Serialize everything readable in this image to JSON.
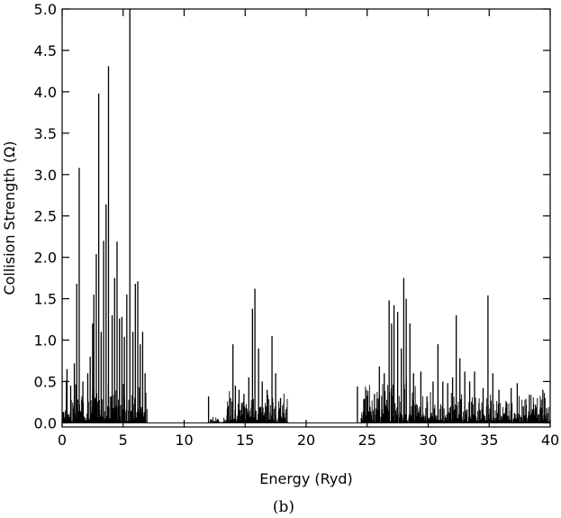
{
  "chart_data": {
    "type": "line",
    "panel_label": "(b)",
    "xlabel": "Energy (Ryd)",
    "ylabel": "Collision Strength (Ω)",
    "xlim": [
      0,
      40
    ],
    "ylim": [
      -0.05,
      5.0
    ],
    "x_ticks": [
      "0",
      "5",
      "10",
      "15",
      "20",
      "25",
      "30",
      "35",
      "40"
    ],
    "y_ticks": [
      "0.0",
      "0.5",
      "1.0",
      "1.5",
      "2.0",
      "2.5",
      "3.0",
      "3.5",
      "4.0",
      "4.5",
      "5.0"
    ],
    "grid": false,
    "line_color": "#000000",
    "baseline": 0.0,
    "peaks": [
      {
        "x": 0.4,
        "y": 0.65
      },
      {
        "x": 0.7,
        "y": 0.45
      },
      {
        "x": 1.0,
        "y": 0.72
      },
      {
        "x": 1.2,
        "y": 1.68
      },
      {
        "x": 1.4,
        "y": 3.08
      },
      {
        "x": 1.7,
        "y": 0.5
      },
      {
        "x": 2.1,
        "y": 0.6
      },
      {
        "x": 2.3,
        "y": 0.8
      },
      {
        "x": 2.5,
        "y": 1.2
      },
      {
        "x": 2.6,
        "y": 1.55
      },
      {
        "x": 2.8,
        "y": 2.04
      },
      {
        "x": 3.0,
        "y": 3.98
      },
      {
        "x": 3.2,
        "y": 1.1
      },
      {
        "x": 3.4,
        "y": 2.2
      },
      {
        "x": 3.6,
        "y": 2.64
      },
      {
        "x": 3.8,
        "y": 4.31
      },
      {
        "x": 4.1,
        "y": 1.3
      },
      {
        "x": 4.3,
        "y": 1.75
      },
      {
        "x": 4.5,
        "y": 2.19
      },
      {
        "x": 4.7,
        "y": 1.26
      },
      {
        "x": 4.9,
        "y": 1.28
      },
      {
        "x": 5.1,
        "y": 1.04
      },
      {
        "x": 5.3,
        "y": 1.55
      },
      {
        "x": 5.55,
        "y": 5.0
      },
      {
        "x": 5.8,
        "y": 1.1
      },
      {
        "x": 6.0,
        "y": 1.68
      },
      {
        "x": 6.2,
        "y": 1.71
      },
      {
        "x": 6.4,
        "y": 0.95
      },
      {
        "x": 6.6,
        "y": 1.1
      },
      {
        "x": 6.8,
        "y": 0.6
      },
      {
        "x": 12.0,
        "y": 0.32
      },
      {
        "x": 13.8,
        "y": 0.3
      },
      {
        "x": 14.0,
        "y": 0.95
      },
      {
        "x": 14.2,
        "y": 0.45
      },
      {
        "x": 14.5,
        "y": 0.4
      },
      {
        "x": 14.9,
        "y": 0.35
      },
      {
        "x": 15.3,
        "y": 0.55
      },
      {
        "x": 15.6,
        "y": 1.38
      },
      {
        "x": 15.8,
        "y": 1.62
      },
      {
        "x": 16.1,
        "y": 0.9
      },
      {
        "x": 16.4,
        "y": 0.5
      },
      {
        "x": 16.8,
        "y": 0.4
      },
      {
        "x": 17.2,
        "y": 1.05
      },
      {
        "x": 17.5,
        "y": 0.6
      },
      {
        "x": 17.9,
        "y": 0.3
      },
      {
        "x": 24.2,
        "y": 0.44
      },
      {
        "x": 25.0,
        "y": 0.15
      },
      {
        "x": 25.6,
        "y": 0.35
      },
      {
        "x": 26.0,
        "y": 0.68
      },
      {
        "x": 26.4,
        "y": 0.6
      },
      {
        "x": 26.8,
        "y": 1.48
      },
      {
        "x": 27.0,
        "y": 1.2
      },
      {
        "x": 27.2,
        "y": 1.42
      },
      {
        "x": 27.5,
        "y": 1.34
      },
      {
        "x": 27.8,
        "y": 0.9
      },
      {
        "x": 28.0,
        "y": 1.75
      },
      {
        "x": 28.2,
        "y": 1.5
      },
      {
        "x": 28.5,
        "y": 1.2
      },
      {
        "x": 28.8,
        "y": 0.6
      },
      {
        "x": 29.4,
        "y": 0.62
      },
      {
        "x": 29.9,
        "y": 0.32
      },
      {
        "x": 30.4,
        "y": 0.5
      },
      {
        "x": 30.8,
        "y": 0.95
      },
      {
        "x": 31.2,
        "y": 0.5
      },
      {
        "x": 31.6,
        "y": 0.48
      },
      {
        "x": 32.0,
        "y": 0.55
      },
      {
        "x": 32.3,
        "y": 1.3
      },
      {
        "x": 32.6,
        "y": 0.78
      },
      {
        "x": 33.0,
        "y": 0.62
      },
      {
        "x": 33.4,
        "y": 0.5
      },
      {
        "x": 33.8,
        "y": 0.62
      },
      {
        "x": 34.5,
        "y": 0.42
      },
      {
        "x": 34.9,
        "y": 1.54
      },
      {
        "x": 35.3,
        "y": 0.6
      },
      {
        "x": 35.8,
        "y": 0.4
      },
      {
        "x": 36.4,
        "y": 0.25
      },
      {
        "x": 36.8,
        "y": 0.42
      },
      {
        "x": 37.3,
        "y": 0.48
      },
      {
        "x": 37.8,
        "y": 0.2
      },
      {
        "x": 38.3,
        "y": 0.34
      },
      {
        "x": 38.8,
        "y": 0.22
      },
      {
        "x": 39.4,
        "y": 0.4
      }
    ],
    "continuum_bands": [
      {
        "x_start": 0.0,
        "x_end": 7.0,
        "level": 0.35
      },
      {
        "x_start": 12.0,
        "x_end": 13.5,
        "level": 0.05
      },
      {
        "x_start": 13.5,
        "x_end": 18.5,
        "level": 0.25
      },
      {
        "x_start": 24.5,
        "x_end": 29.5,
        "level": 0.4
      },
      {
        "x_start": 29.5,
        "x_end": 40.0,
        "level": 0.25
      }
    ]
  }
}
